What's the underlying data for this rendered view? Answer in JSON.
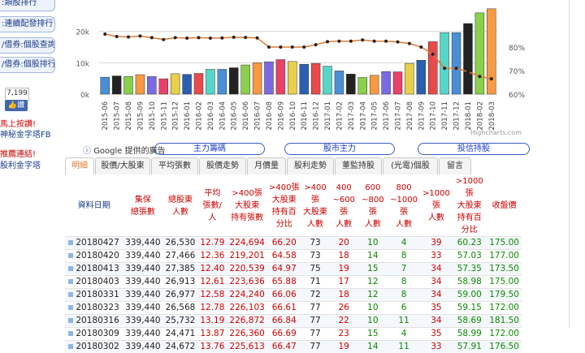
{
  "sidebar": {
    "items": [
      {
        "label": ":類股排行"
      },
      {
        "label": ":連續配發排行"
      },
      {
        "label": "/借券:個股查詢"
      },
      {
        "label": "/借券:個股排行"
      }
    ],
    "fb_count": "7,199",
    "fb_like": "讚",
    "links": [
      {
        "label": "馬上按讚!",
        "color": "#d00000"
      },
      {
        "label": "神秘金字塔FB",
        "color": "#1a3b8c"
      },
      {
        "label": "推薦連結!",
        "color": "#d00000"
      },
      {
        "label": "股利金字塔",
        "color": "#1a3b8c"
      }
    ]
  },
  "chart_data": {
    "type": "bar",
    "categories": [
      "2015-06",
      "2015-07",
      "2015-08",
      "2015-09",
      "2015-10",
      "2015-11",
      "2015-12",
      "2016-01",
      "2016-02",
      "2016-03",
      "2016-04",
      "2016-05",
      "2016-06",
      "2016-07",
      "2016-08",
      "2016-09",
      "2016-10",
      "2016-11",
      "2016-12",
      "2017-01",
      "2017-02",
      "2017-03",
      "2017-04",
      "2017-05",
      "2017-06",
      "2017-07",
      "2017-08",
      "2017-09",
      "2017-10",
      "2017-11",
      "2017-12",
      "2018-01",
      "2018-02",
      "2018-03"
    ],
    "values": [
      5400,
      5800,
      5600,
      6200,
      5600,
      4900,
      6500,
      6300,
      6600,
      7900,
      7900,
      8400,
      9300,
      10000,
      10300,
      11000,
      10400,
      9500,
      9800,
      8900,
      7400,
      6400,
      5300,
      6000,
      7200,
      7100,
      9800,
      10800,
      16700,
      19600,
      19600,
      22500,
      25900,
      27200
    ],
    "line_values": [
      85.5,
      84.5,
      84.3,
      84.7,
      84.0,
      83.2,
      84.0,
      83.8,
      84.0,
      83.8,
      83.9,
      84.2,
      84.1,
      83.9,
      80.0,
      80.0,
      80.0,
      80.0,
      81.0,
      82.3,
      82.5,
      82.5,
      83.0,
      82.5,
      82.5,
      82.2,
      81.5,
      80.0,
      77.0,
      71.0,
      71.0,
      69.5,
      67.5,
      66.5
    ],
    "y_ticks": [
      "0k",
      "10k",
      "20k"
    ],
    "y_right_ticks": [
      "60%",
      "70%",
      "80%"
    ],
    "ylim": [
      0,
      30000
    ],
    "y_right_lim": [
      60,
      100
    ],
    "credit": "Highcharts.com",
    "colors": [
      "#4a8fd6",
      "#222222",
      "#8ad04a",
      "#f79a43",
      "#7b6be0",
      "#e8426a",
      "#e8d04a",
      "#2a5fb0",
      "#e84a4a",
      "#56d6c8"
    ]
  },
  "ads": {
    "label": "Google 提供的廣告",
    "pills": [
      {
        "label": "主力籌碼"
      },
      {
        "label": "股市主力"
      },
      {
        "label": "投信持股"
      }
    ]
  },
  "tabs": [
    {
      "label": "明細"
    },
    {
      "label": "股價/大股東"
    },
    {
      "label": "平均張數"
    },
    {
      "label": "股價走勢"
    },
    {
      "label": "月價量"
    },
    {
      "label": "股利走勢"
    },
    {
      "label": "董監持股"
    },
    {
      "label": "(光電)個股"
    },
    {
      "label": "留言"
    }
  ],
  "table": {
    "headers": {
      "date": "資料日期",
      "total_1": "集保",
      "total_2": "總張數",
      "holders_1": "總股東",
      "holders_2": "人數",
      "avg_1": "平均",
      "avg_2": "張數/人",
      "big_1": ">400張",
      "big_2": "大股東",
      "big_3": "持有張數",
      "pct_1": ">400張",
      "pct_2": "大股東",
      "pct_3": "持有百分比",
      "bign_1": ">400張",
      "bign_2": "大股東",
      "bign_3": "人數",
      "r1_1": "400",
      "r1_2": "~600張",
      "r1_3": "人數",
      "r2_1": "600",
      "r2_2": "~800張",
      "r2_3": "人數",
      "r3_1": "800",
      "r3_2": "~1000張",
      "r3_3": "人數",
      "k_1": ">1000張",
      "k_2": "人數",
      "kp_1": ">1000張",
      "kp_2": "大股東",
      "kp_3": "持有百分比",
      "close": "收盤價"
    },
    "rows": [
      {
        "date": "20180427",
        "total": "339,440",
        "holders": "26,530",
        "avg": "12.79",
        "big": "224,694",
        "pct": "66.20",
        "bign": "73",
        "r1": "20",
        "r2": "10",
        "r3": "4",
        "k": "39",
        "kp": "60.23",
        "close": "175.00"
      },
      {
        "date": "20180420",
        "total": "339,440",
        "holders": "27,466",
        "avg": "12.36",
        "big": "219,201",
        "pct": "64.58",
        "bign": "73",
        "r1": "18",
        "r2": "14",
        "r3": "8",
        "k": "33",
        "kp": "57.03",
        "close": "177.00"
      },
      {
        "date": "20180413",
        "total": "339,440",
        "holders": "27,385",
        "avg": "12.40",
        "big": "220,539",
        "pct": "64.97",
        "bign": "75",
        "r1": "19",
        "r2": "15",
        "r3": "7",
        "k": "34",
        "kp": "57.35",
        "close": "173.50"
      },
      {
        "date": "20180403",
        "total": "339,440",
        "holders": "26,913",
        "avg": "12.61",
        "big": "223,636",
        "pct": "65.88",
        "bign": "71",
        "r1": "17",
        "r2": "12",
        "r3": "8",
        "k": "34",
        "kp": "58.98",
        "close": "175.00"
      },
      {
        "date": "20180331",
        "total": "339,440",
        "holders": "26,977",
        "avg": "12.58",
        "big": "224,240",
        "pct": "66.06",
        "bign": "72",
        "r1": "18",
        "r2": "12",
        "r3": "8",
        "k": "34",
        "kp": "59.00",
        "close": "179.50"
      },
      {
        "date": "20180323",
        "total": "339,440",
        "holders": "26,568",
        "avg": "12.78",
        "big": "226,103",
        "pct": "66.61",
        "bign": "77",
        "r1": "26",
        "r2": "10",
        "r3": "6",
        "k": "35",
        "kp": "59.15",
        "close": "172.00"
      },
      {
        "date": "20180316",
        "total": "339,440",
        "holders": "25,732",
        "avg": "13.19",
        "big": "226,872",
        "pct": "66.84",
        "bign": "77",
        "r1": "22",
        "r2": "10",
        "r3": "11",
        "k": "34",
        "kp": "58.69",
        "close": "181.50"
      },
      {
        "date": "20180309",
        "total": "339,440",
        "holders": "24,471",
        "avg": "13.87",
        "big": "226,360",
        "pct": "66.69",
        "bign": "77",
        "r1": "23",
        "r2": "15",
        "r3": "4",
        "k": "35",
        "kp": "58.99",
        "close": "172.00"
      },
      {
        "date": "20180302",
        "total": "339,440",
        "holders": "24,672",
        "avg": "13.76",
        "big": "225,613",
        "pct": "66.47",
        "bign": "77",
        "r1": "19",
        "r2": "14",
        "r3": "11",
        "k": "33",
        "kp": "57.91",
        "close": "176.50"
      }
    ]
  }
}
